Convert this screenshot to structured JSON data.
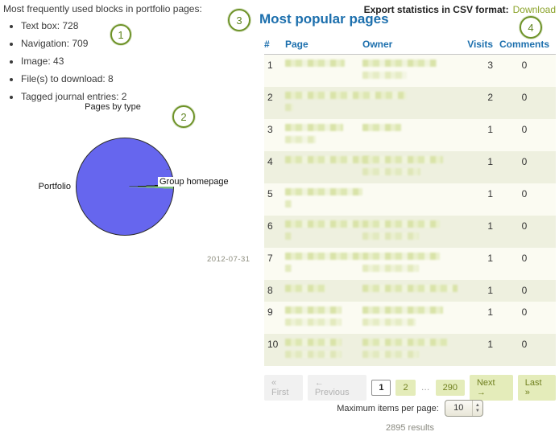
{
  "left_panel": {
    "intro": "Most frequently used blocks in portfolio pages:",
    "blocks": [
      {
        "label": "Text box",
        "count": "728"
      },
      {
        "label": "Navigation",
        "count": "709"
      },
      {
        "label": "Image",
        "count": "43"
      },
      {
        "label": "File(s) to download",
        "count": "8"
      },
      {
        "label": "Tagged journal entries",
        "count": "2"
      }
    ]
  },
  "chart_data": {
    "type": "pie",
    "title": "Pages by type",
    "slices": [
      {
        "label": "Portfolio",
        "value_pct": 98.5,
        "color": "#6666ee"
      },
      {
        "label": "..",
        "value_pct": 0.6,
        "color": "#111111"
      },
      {
        "label": "Group homepage",
        "value_pct": 0.9,
        "color": "#7cbf7c"
      }
    ],
    "legend_position": "labels-on-chart",
    "date_label": "2012-07-31"
  },
  "annotations": [
    "1",
    "2",
    "3",
    "4"
  ],
  "export": {
    "label": "Export statistics in CSV format:",
    "link_label": "Download"
  },
  "main": {
    "title": "Most popular pages",
    "table": {
      "headers": [
        "#",
        "Page",
        "Owner",
        "Visits",
        "Comments"
      ],
      "rows": [
        {
          "rank": "1",
          "visits": "3",
          "comments": "0",
          "page_redacted_widths": [
            74
          ],
          "owner_redacted_widths": [
            92,
            55
          ]
        },
        {
          "rank": "2",
          "visits": "2",
          "comments": "0",
          "page_redacted_widths": [
            150,
            10
          ],
          "owner_redacted_widths": []
        },
        {
          "rank": "3",
          "visits": "1",
          "comments": "0",
          "page_redacted_widths": [
            72,
            38
          ],
          "owner_redacted_widths": [
            48
          ]
        },
        {
          "rank": "4",
          "visits": "1",
          "comments": "0",
          "page_redacted_widths": [
            112
          ],
          "owner_redacted_widths": [
            100,
            72
          ]
        },
        {
          "rank": "5",
          "visits": "1",
          "comments": "0",
          "page_redacted_widths": [
            96,
            8
          ],
          "owner_redacted_widths": []
        },
        {
          "rank": "6",
          "visits": "1",
          "comments": "0",
          "page_redacted_widths": [
            96,
            8
          ],
          "owner_redacted_widths": [
            96,
            70
          ]
        },
        {
          "rank": "7",
          "visits": "1",
          "comments": "0",
          "page_redacted_widths": [
            96,
            8
          ],
          "owner_redacted_widths": [
            96,
            70
          ]
        },
        {
          "rank": "8",
          "visits": "1",
          "comments": "0",
          "page_redacted_widths": [
            50
          ],
          "owner_redacted_widths": [
            118
          ]
        },
        {
          "rank": "9",
          "visits": "1",
          "comments": "0",
          "page_redacted_widths": [
            70,
            70
          ],
          "owner_redacted_widths": [
            100,
            66
          ]
        },
        {
          "rank": "10",
          "visits": "1",
          "comments": "0",
          "page_redacted_widths": [
            70,
            70
          ],
          "owner_redacted_widths": [
            106,
            70
          ]
        }
      ]
    },
    "pagination": {
      "first": "« First",
      "previous": "← Previous",
      "pages": [
        "1",
        "2",
        "…",
        "290"
      ],
      "current_page": "1",
      "next": "Next →",
      "last": "Last »"
    },
    "max_items": {
      "label": "Maximum items per page:",
      "value": "10"
    },
    "results_label": "2895 results"
  }
}
